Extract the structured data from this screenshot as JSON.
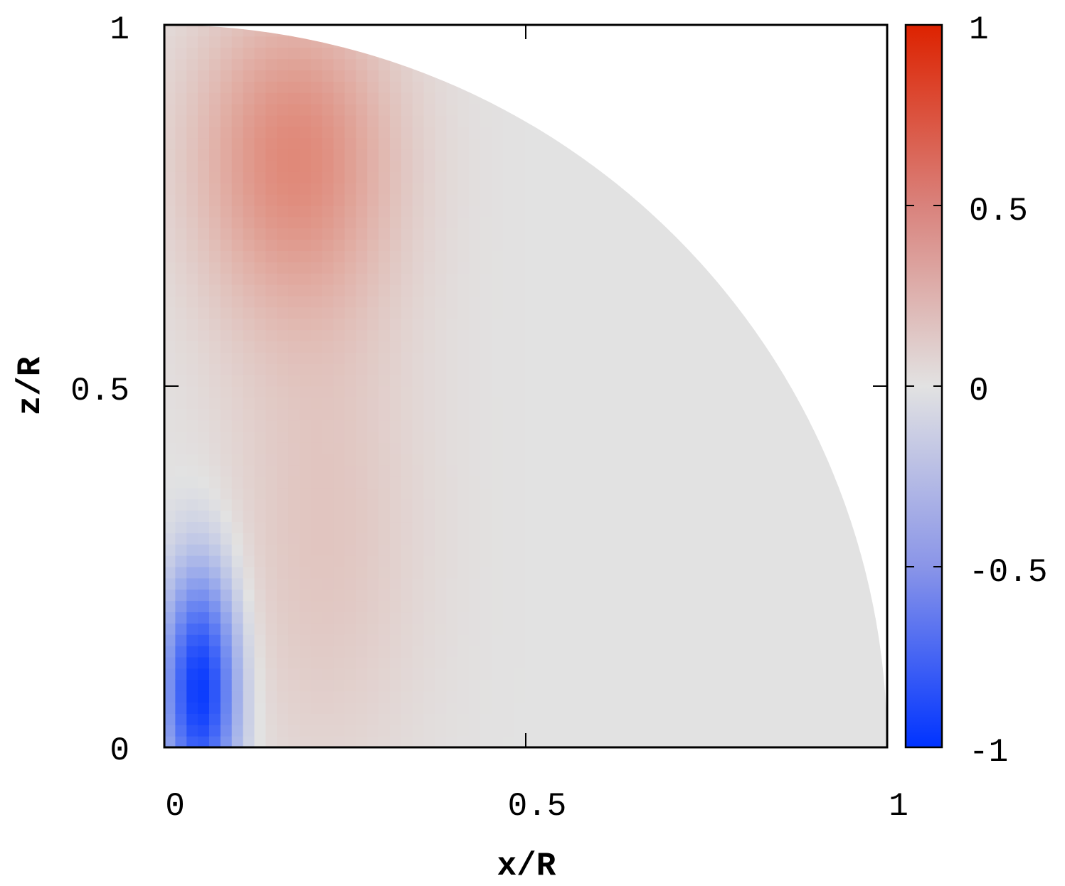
{
  "chart_data": {
    "type": "heatmap",
    "title": "",
    "xlabel": "x/R",
    "ylabel": "z/R",
    "xlim": [
      0,
      1
    ],
    "ylim": [
      0,
      1
    ],
    "x_ticks": [
      "0",
      "0.5",
      "1"
    ],
    "y_ticks": [
      "0",
      "0.5",
      "1"
    ],
    "domain": "quarter-disk (x^2 + z^2 <= 1)",
    "colorbar": {
      "range": [
        -1,
        1
      ],
      "ticks": [
        "-1",
        "-0.5",
        "0",
        "0.5",
        "1"
      ],
      "colors": {
        "min": "#0033ff",
        "mid": "#e2e2e2",
        "max": "#dd2200"
      }
    },
    "features": [
      {
        "label": "negative lobe",
        "x": 0.05,
        "z": 0.08,
        "value": -0.98
      },
      {
        "label": "positive lobe",
        "x": 0.18,
        "z": 0.82,
        "value": 0.45
      },
      {
        "label": "weak positive band",
        "x": 0.22,
        "z": 0.3,
        "value": 0.15
      }
    ]
  }
}
